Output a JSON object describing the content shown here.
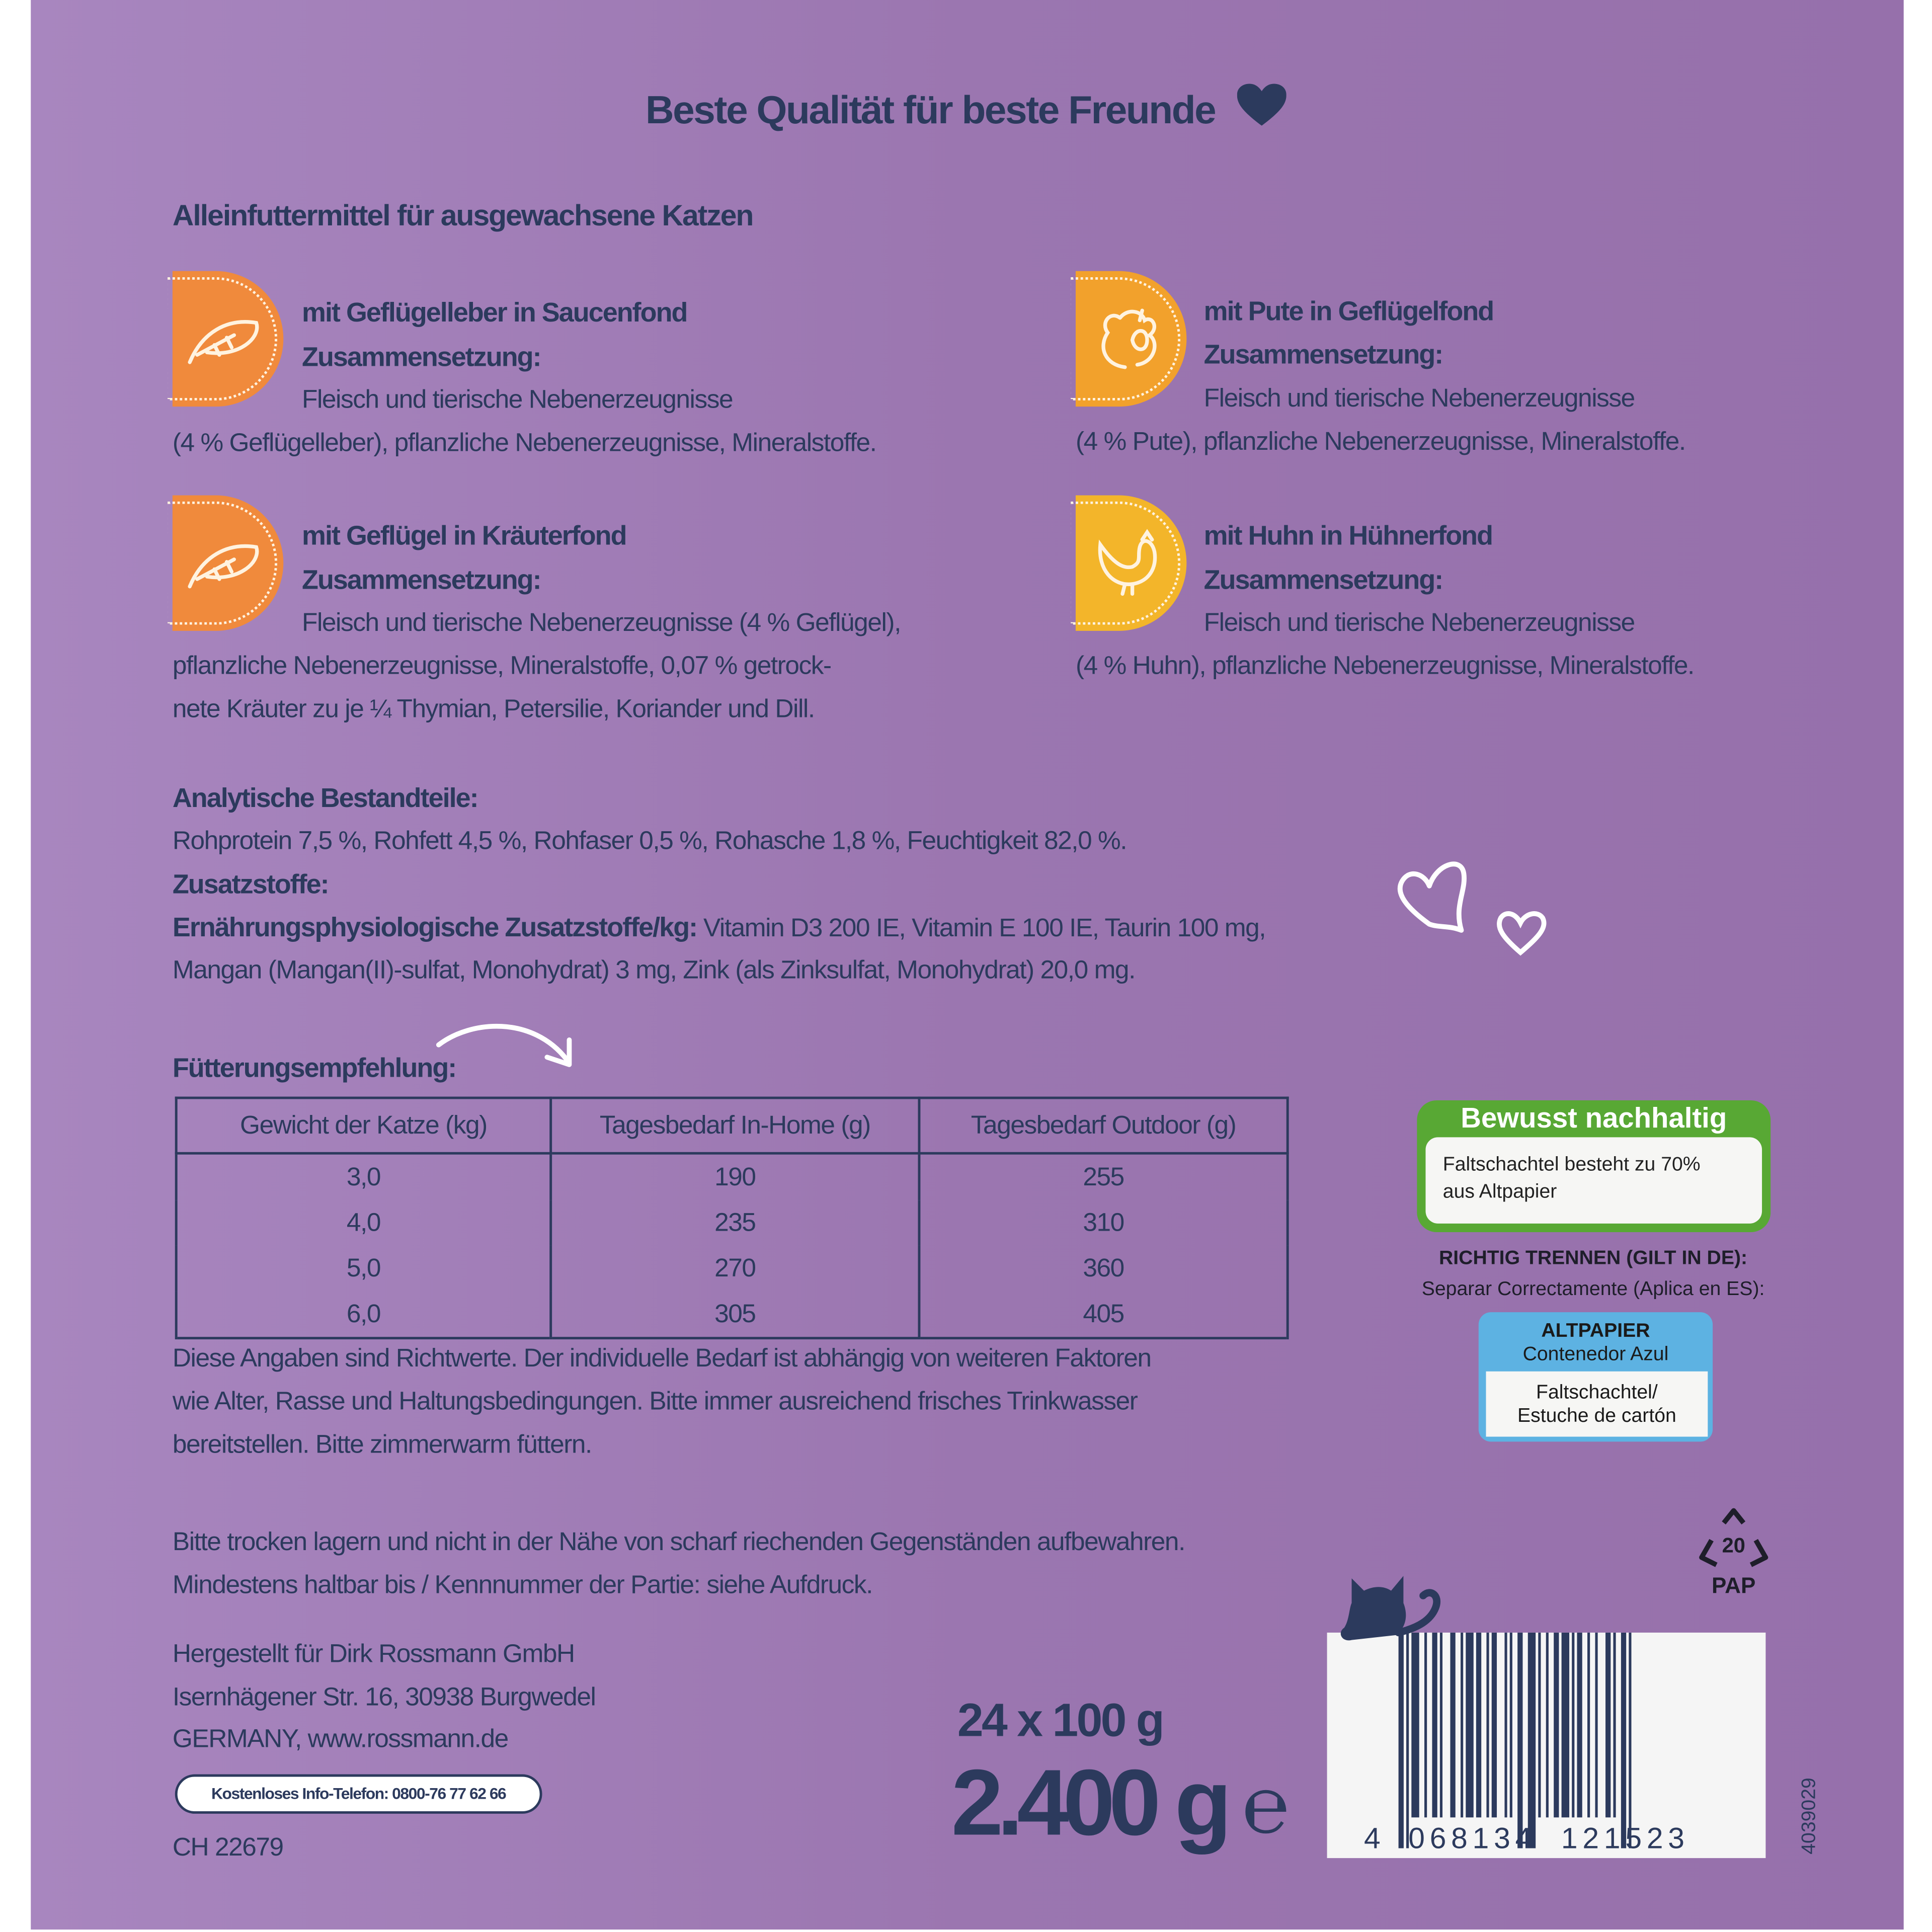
{
  "colors": {
    "background": "#9b76b0",
    "text": "#2c3a5d",
    "orange": "#f08a3c",
    "amber": "#f2a12c",
    "yellow": "#f3b52a",
    "green": "#58a834",
    "blue": "#5db2e2"
  },
  "header": {
    "title": "Beste Qualität für beste Freunde",
    "icon": "heart-icon"
  },
  "subtitle": "Alleinfuttermittel für ausgewachsene Katzen",
  "products": [
    {
      "title": "mit Geflügelleber in Saucenfond",
      "label": "Zusammensetzung:",
      "lines": [
        "Fleisch und tierische Nebenerzeugnisse",
        "(4 % Geflügelleber), pflanzliche Nebenerzeugnisse, Mineralstoffe."
      ],
      "icon": "feather-icon"
    },
    {
      "title": "mit Pute in Geflügelfond",
      "label": "Zusammensetzung:",
      "lines": [
        "Fleisch und tierische Nebenerzeugnisse",
        "(4 % Pute), pflanzliche Nebenerzeugnisse, Mineralstoffe."
      ],
      "icon": "turkey-icon"
    },
    {
      "title": "mit Geflügel in Kräuterfond",
      "label": "Zusammensetzung:",
      "lines": [
        "Fleisch und tierische Nebenerzeugnisse (4 % Geflügel),",
        "pflanzliche Nebenerzeugnisse, Mineralstoffe, 0,07 % getrock-",
        "nete Kräuter zu je ¼ Thymian, Petersilie, Koriander und Dill."
      ],
      "icon": "feather-icon"
    },
    {
      "title": "mit Huhn in Hühnerfond",
      "label": "Zusammensetzung:",
      "lines": [
        "Fleisch und tierische Nebenerzeugnisse",
        "(4 % Huhn), pflanzliche Nebenerzeugnisse, Mineralstoffe."
      ],
      "icon": "chicken-icon"
    }
  ],
  "analytics": {
    "label": "Analytische Bestandteile:",
    "text": "Rohprotein 7,5 %, Rohfett 4,5 %, Rohfaser 0,5 %, Rohasche 1,8 %, Feuchtigkeit 82,0 %."
  },
  "additives": {
    "label": "Zusatzstoffe:",
    "sublabel": "Ernährungsphysiologische Zusatzstoffe/kg:",
    "text1": " Vitamin D3 200 IE, Vitamin E 100 IE, Taurin 100 mg,",
    "text2": "Mangan (Mangan(II)-sulfat, Monohydrat) 3 mg, Zink (als Zinksulfat, Monohydrat) 20,0 mg."
  },
  "feeding": {
    "label": "Fütterungsempfehlung:",
    "headers": [
      "Gewicht der Katze (kg)",
      "Tagesbedarf In-Home (g)",
      "Tagesbedarf Outdoor (g)"
    ],
    "rows": [
      [
        "3,0",
        "190",
        "255"
      ],
      [
        "4,0",
        "235",
        "310"
      ],
      [
        "5,0",
        "270",
        "360"
      ],
      [
        "6,0",
        "305",
        "405"
      ]
    ],
    "notes": [
      "Diese Angaben sind Richtwerte. Der individuelle Bedarf ist abhängig von weiteren Faktoren",
      "wie Alter, Rasse und Haltungsbedingungen. Bitte immer ausreichend frisches Trinkwasser",
      "bereitstellen. Bitte zimmerwarm füttern."
    ]
  },
  "storage": [
    "Bitte trocken lagern und nicht in der Nähe von scharf riechenden Gegenständen aufbewahren.",
    "Mindestens haltbar bis / Kennnummer der Partie: siehe Aufdruck."
  ],
  "address": [
    "Hergestellt für Dirk Rossmann GmbH",
    "Isernhägener Str. 16, 30938 Burgwedel",
    "GERMANY, www.rossmann.de"
  ],
  "phone": "Kostenloses Info-Telefon: 0800-76 77 62 66",
  "code": "CH 22679",
  "quantity": {
    "pack": "24 x 100 g",
    "weight": "2.400 g",
    "estimated_sign": "℮"
  },
  "sustainability": {
    "title": "Bewusst nachhaltig",
    "line1": "Faltschachtel besteht zu 70%",
    "line2": "aus Altpapier"
  },
  "recycling": {
    "line1": "RICHTIG TRENNEN (GILT IN DE):",
    "line2": "Separar Correctamente (Aplica en ES):",
    "bin_title": "ALTPAPIER",
    "bin_sub": "Contenedor Azul",
    "item1": "Faltschachtel/",
    "item2": "Estuche de cartón",
    "symbol_number": "20",
    "symbol_code": "PAP"
  },
  "barcode": {
    "first": "4",
    "left": "068134",
    "right": "121523"
  },
  "article_number": "4039029"
}
